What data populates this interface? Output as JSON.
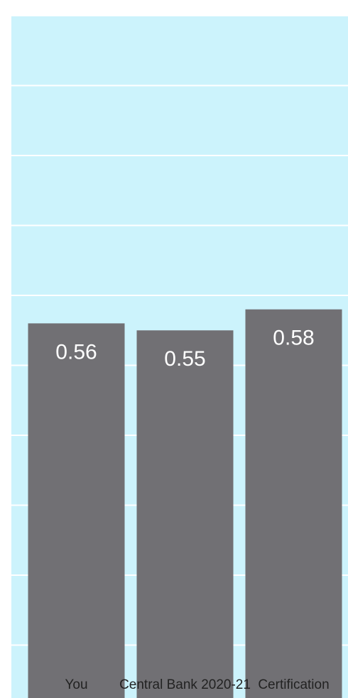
{
  "chart_data": {
    "type": "bar",
    "categories": [
      "You",
      "Central Bank 2020-21",
      "Certification"
    ],
    "values": [
      0.56,
      0.55,
      0.58
    ],
    "color": "#717074",
    "background": "#ccf3fc",
    "ylim": [
      0,
      1
    ],
    "yticks": [
      0,
      0.1,
      0.2,
      0.3,
      0.4,
      0.5,
      0.6,
      0.7,
      0.8,
      0.9,
      1
    ],
    "grid": true
  }
}
